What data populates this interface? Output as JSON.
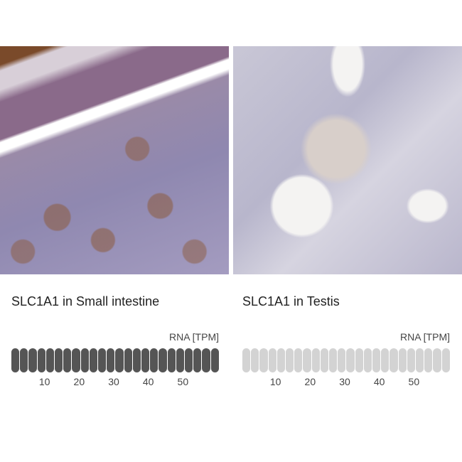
{
  "panels": [
    {
      "title": "SLC1A1 in Small intestine",
      "rna_label": "RNA [TPM]",
      "ticks": [
        "10",
        "20",
        "30",
        "40",
        "50"
      ],
      "segments": 24,
      "filled_fraction": 1.0,
      "fill_color": "#555555",
      "empty_color": "#d3d3d3"
    },
    {
      "title": "SLC1A1 in Testis",
      "rna_label": "RNA [TPM]",
      "ticks": [
        "10",
        "20",
        "30",
        "40",
        "50"
      ],
      "segments": 24,
      "filled_fraction": 0.0,
      "fill_color": "#555555",
      "empty_color": "#d3d3d3"
    }
  ],
  "chart_data": [
    {
      "type": "bar",
      "title": "SLC1A1 in Small intestine",
      "ylabel": "RNA [TPM]",
      "tick_labels": [
        "10",
        "20",
        "30",
        "40",
        "50"
      ],
      "level_percent": 100
    },
    {
      "type": "bar",
      "title": "SLC1A1 in Testis",
      "ylabel": "RNA [TPM]",
      "tick_labels": [
        "10",
        "20",
        "30",
        "40",
        "50"
      ],
      "level_percent": 0
    }
  ]
}
